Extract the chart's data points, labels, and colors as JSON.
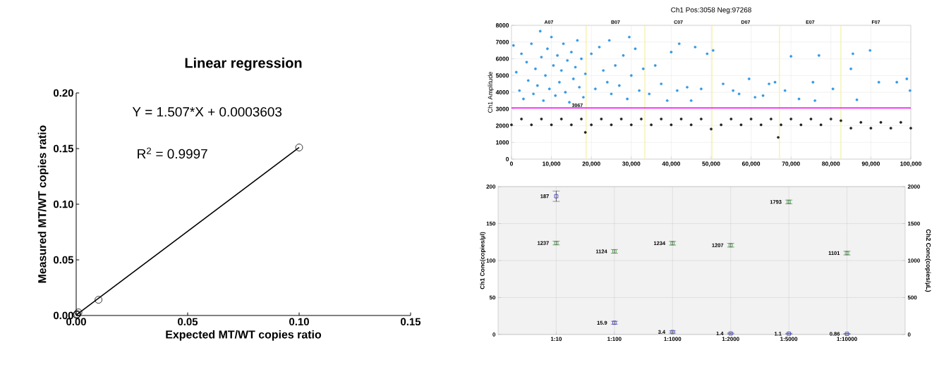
{
  "chart_data": [
    {
      "type": "scatter",
      "title": "Linear regression",
      "xlabel": "Expected MT/WT copies ratio",
      "ylabel": "Measured MT/WT copies ratio",
      "annotations": [
        "Y = 1.507*X + 0.0003603",
        "R$^{2}$ = 0.9997"
      ],
      "xlim": [
        0,
        0.15
      ],
      "ylim": [
        0,
        0.2
      ],
      "xticks": [
        {
          "value": 0,
          "label": "0.00"
        },
        0.05,
        {
          "value": 0.1,
          "label": "0.10"
        },
        0.15
      ],
      "yticks": [
        {
          "value": 0,
          "label": "0.00"
        },
        0.05,
        {
          "value": 0.1,
          "label": "0.10"
        },
        0.15,
        {
          "value": 0.2,
          "label": "0.20"
        }
      ],
      "series": [
        {
          "color": "#000000",
          "marker": "circle",
          "x": [
            0.1,
            0.01,
            0.001,
            0.0005,
            0.0002,
            0.0001
          ],
          "values": [
            0.151,
            0.0141,
            0.0028,
            0.0012,
            0.0006,
            0.0008
          ]
        },
        {
          "type": "line",
          "color": "#000000",
          "x": [
            0,
            0.1
          ],
          "values": [
            0.0004,
            0.151
          ]
        }
      ]
    },
    {
      "type": "scatter",
      "title": "Ch1 Pos:3058 Neg:97268",
      "ylabel": "Ch1 Amplitude",
      "xlim": [
        0,
        100000
      ],
      "ylim": [
        0,
        8000
      ],
      "xticks": [
        0,
        {
          "value": 10000,
          "label": "10,000"
        },
        {
          "value": 20000,
          "label": "20,000"
        },
        {
          "value": 30000,
          "label": "30,000"
        },
        {
          "value": 40000,
          "label": "40,000"
        },
        {
          "value": 50000,
          "label": "50,000"
        },
        {
          "value": 60000,
          "label": "60,000"
        },
        {
          "value": 70000,
          "label": "70,000"
        },
        {
          "value": 80000,
          "label": "80,000"
        },
        {
          "value": 90000,
          "label": "90,000"
        },
        {
          "value": 100000,
          "label": "100,000"
        }
      ],
      "yticks": [
        0,
        1000,
        2000,
        3000,
        4000,
        5000,
        6000,
        7000,
        8000
      ],
      "annotations": [
        "A07",
        "B07",
        "C07",
        "D07",
        "E07",
        "F07"
      ],
      "grid": true,
      "marker": "circle",
      "ref_lines": [
        {
          "axis": "y",
          "value": 3067,
          "label": "3067",
          "color": "#ff00ff"
        },
        {
          "axis": "x",
          "value": 18700,
          "color": "#f5f0a0"
        },
        {
          "axis": "x",
          "value": 33400,
          "color": "#f5f0a0"
        },
        {
          "axis": "x",
          "value": 50200,
          "color": "#f5f0a0"
        },
        {
          "axis": "x",
          "value": 67100,
          "color": "#f5f0a0"
        },
        {
          "axis": "x",
          "value": 82500,
          "color": "#f5f0a0"
        }
      ],
      "series": [
        {
          "color": "#3399e6",
          "x": [
            500,
            1200,
            2000,
            2500,
            3000,
            3800,
            4200,
            5000,
            5500,
            6000,
            6500,
            7200,
            7500,
            8000,
            8500,
            9000,
            9500,
            10000,
            10500,
            11000,
            11500,
            12000,
            12500,
            13000,
            13500,
            14000,
            14500,
            15000,
            15500,
            16000,
            16500,
            17000,
            17500,
            18000,
            18500,
            20000,
            21000,
            22000,
            23000,
            24000,
            24500,
            25000,
            26000,
            27000,
            28000,
            29000,
            29500,
            30000,
            31000,
            32000,
            33000,
            34500,
            36000,
            37500,
            39000,
            40000,
            41500,
            42000,
            44000,
            45000,
            46000,
            47500,
            49000,
            50500,
            53000,
            55500,
            57000,
            59500,
            61000,
            63000,
            64500,
            66000,
            68500,
            70000,
            72000,
            75500,
            76000,
            77000,
            80500,
            85000,
            85500,
            86500,
            89800,
            92000,
            96500,
            99000,
            99800
          ],
          "values": [
            6800,
            5200,
            4100,
            6300,
            3600,
            5800,
            4700,
            6900,
            3900,
            5400,
            4400,
            7650,
            6100,
            3500,
            5000,
            6600,
            4200,
            7300,
            5600,
            3800,
            6200,
            4600,
            5300,
            6900,
            4000,
            5900,
            3400,
            6400,
            4800,
            5500,
            7100,
            4300,
            6000,
            3700,
            5100,
            6300,
            4200,
            6700,
            5300,
            4600,
            7100,
            3900,
            5600,
            4400,
            6200,
            3600,
            7300,
            5000,
            6600,
            4100,
            5400,
            3900,
            5600,
            4500,
            3500,
            6400,
            4100,
            6900,
            4300,
            3500,
            6700,
            4200,
            6300,
            6500,
            4500,
            4100,
            3900,
            4800,
            3700,
            3800,
            4500,
            4600,
            4100,
            6150,
            3600,
            4600,
            3500,
            6200,
            4200,
            5400,
            6300,
            3550,
            6500,
            4600,
            4600,
            4800,
            4100
          ]
        },
        {
          "color": "#222222",
          "x": [
            0,
            2500,
            5000,
            7500,
            10000,
            12500,
            15000,
            17500,
            18500,
            20000,
            22500,
            25000,
            27500,
            30000,
            32500,
            35000,
            37500,
            40000,
            42500,
            45000,
            47500,
            50000,
            52500,
            55000,
            57500,
            60000,
            62500,
            65000,
            66800,
            67500,
            70000,
            72500,
            75000,
            77500,
            80000,
            82500,
            85000,
            87500,
            90000,
            92500,
            95000,
            97500,
            100000
          ],
          "values": [
            2050,
            2400,
            2050,
            2400,
            2050,
            2400,
            2050,
            2400,
            1600,
            2050,
            2400,
            2050,
            2400,
            2050,
            2400,
            2050,
            2400,
            2050,
            2400,
            2050,
            2400,
            1800,
            2050,
            2400,
            2050,
            2400,
            2050,
            2400,
            1300,
            2050,
            2400,
            2050,
            2400,
            2050,
            2400,
            2300,
            1850,
            2200,
            1850,
            2200,
            1850,
            2200,
            1850
          ]
        }
      ]
    },
    {
      "type": "scatter",
      "categories": [
        "1:10",
        "1:100",
        "1:1000",
        "1:2000",
        "1:5000",
        "1:10000"
      ],
      "ylabel": "Ch1 Conc(copies/µl)",
      "y2label": "Ch2 Conc(copies/µL)",
      "ylim": [
        0,
        200
      ],
      "yticks": [
        0,
        50,
        100,
        150,
        200
      ],
      "y2lim": [
        0,
        2000
      ],
      "y2ticks": [
        0,
        500,
        1000,
        1500,
        2000
      ],
      "grid": true,
      "marker": "square",
      "data_labels": true,
      "series": [
        {
          "color": "#3333cc",
          "values": [
            187,
            15.9,
            3.4,
            1.4,
            1.1,
            0.86
          ],
          "errors": [
            7,
            2,
            1.5,
            0.6,
            0.5,
            0.5
          ]
        },
        {
          "color": "#339933",
          "axis": "y2",
          "values": [
            1237,
            1124,
            1234,
            1207,
            1793,
            1101
          ],
          "errors": [
            25,
            25,
            25,
            25,
            25,
            25
          ]
        }
      ]
    }
  ]
}
